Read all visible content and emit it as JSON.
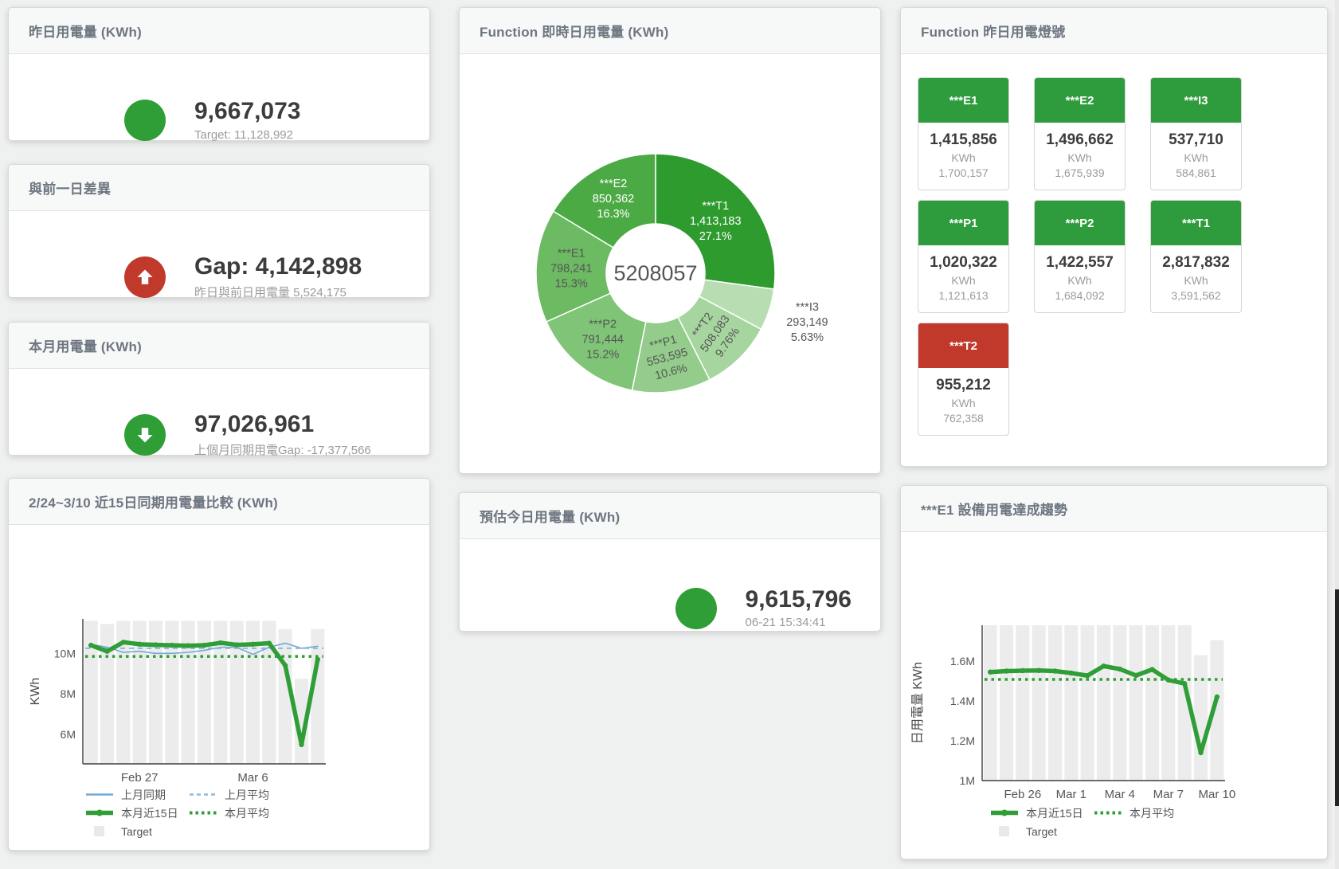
{
  "page": {
    "bg": "#eff0f0"
  },
  "colors": {
    "green": "#2f9e36",
    "red": "#c0392b",
    "tile_green": "#2e9b3c",
    "tile_red": "#c0392b",
    "blue_line": "#72a7d3",
    "blue_dash": "#8bb9e0",
    "bar_gray": "#ececec",
    "title_gray": "#6e7681"
  },
  "cards": {
    "yesterday": {
      "title": "昨日用電量 (KWh)",
      "value": "9,667,073",
      "subtitle": "Target: 11,128,992",
      "indicator": "green-circle"
    },
    "gap": {
      "title": "與前一日差異",
      "value": "Gap: 4,142,898",
      "subtitle": "昨日與前日用電量 5,524,175",
      "indicator": "red-circle-up-arrow"
    },
    "month": {
      "title": "本月用電量 (KWh)",
      "value": "97,026,961",
      "subtitle": "上個月同期用電Gap: -17,377,566",
      "indicator": "green-circle-down-arrow"
    },
    "estimate": {
      "title": "預估今日用電量 (KWh)",
      "value": "9,615,796",
      "subtitle": "06-21 15:34:41",
      "indicator": "green-circle"
    },
    "donut": {
      "title": "Function 即時日用電量 (KWh)"
    },
    "compare": {
      "title": "2/24~3/10 近15日同期用電量比較 (KWh)"
    },
    "trend": {
      "title": "***E1 設備用電達成趨勢"
    },
    "lamp": {
      "title": "Function 昨日用電燈號",
      "unit": "KWh",
      "tiles": [
        {
          "label": "***E1",
          "value": "1,415,856",
          "target": "1,700,157",
          "status": "green"
        },
        {
          "label": "***E2",
          "value": "1,496,662",
          "target": "1,675,939",
          "status": "green"
        },
        {
          "label": "***I3",
          "value": "537,710",
          "target": "584,861",
          "status": "green"
        },
        {
          "label": "***P1",
          "value": "1,020,322",
          "target": "1,121,613",
          "status": "green"
        },
        {
          "label": "***P2",
          "value": "1,422,557",
          "target": "1,684,092",
          "status": "green"
        },
        {
          "label": "***T1",
          "value": "2,817,832",
          "target": "3,591,562",
          "status": "green"
        },
        {
          "label": "***T2",
          "value": "955,212",
          "target": "762,358",
          "status": "red"
        }
      ]
    }
  },
  "chart_data": [
    {
      "id": "donut",
      "type": "pie",
      "title": "Function 即時日用電量 (KWh)",
      "center_total": "5208057",
      "slices": [
        {
          "name": "***T1",
          "value": 1413183,
          "value_label": "1,413,183",
          "pct_label": "27.1%",
          "color": "#2e9b2e",
          "text": "#ffffff"
        },
        {
          "name": "***I3",
          "value": 293149,
          "value_label": "293,149",
          "pct_label": "5.63%",
          "color": "#b9ddb3",
          "text": "#555555",
          "outside": true
        },
        {
          "name": "***T2",
          "value": 508083,
          "value_label": "508,083",
          "pct_label": "9.76%",
          "color": "#a6d59f",
          "text": "#555555"
        },
        {
          "name": "***P1",
          "value": 553595,
          "value_label": "553,595",
          "pct_label": "10.6%",
          "color": "#93cc8b",
          "text": "#555555"
        },
        {
          "name": "***P2",
          "value": 791444,
          "value_label": "791,444",
          "pct_label": "15.2%",
          "color": "#7fc477",
          "text": "#555555"
        },
        {
          "name": "***E1",
          "value": 798241,
          "value_label": "798,241",
          "pct_label": "15.3%",
          "color": "#6cba62",
          "text": "#555555"
        },
        {
          "name": "***E2",
          "value": 850362,
          "value_label": "850,362",
          "pct_label": "16.3%",
          "color": "#4caa45",
          "text": "#ffffff"
        }
      ]
    },
    {
      "id": "compare",
      "type": "line",
      "title": "2/24~3/10 近15日同期用電量比較 (KWh)",
      "ylabel": "KWh",
      "xlabel": "",
      "ylim": [
        4550000,
        11700000
      ],
      "grid": false,
      "legend_position": "bottom-left",
      "yticks": [
        {
          "value": 6000000,
          "label": "6M"
        },
        {
          "value": 8000000,
          "label": "8M"
        },
        {
          "value": 10000000,
          "label": "10M"
        }
      ],
      "x": [
        "2/24",
        "2/25",
        "2/26",
        "2/27",
        "2/28",
        "3/1",
        "3/2",
        "3/3",
        "3/4",
        "3/5",
        "3/6",
        "3/7",
        "3/8",
        "3/9",
        "3/10"
      ],
      "xticks": [
        {
          "index": 3,
          "label": "Feb 27"
        },
        {
          "index": 10,
          "label": "Mar 6"
        }
      ],
      "series": [
        {
          "name": "Target",
          "kind": "bar",
          "color": "#ececec",
          "values": [
            11600000,
            11450000,
            11600000,
            11600000,
            11600000,
            11600000,
            11600000,
            11600000,
            11600000,
            11600000,
            11600000,
            11600000,
            11200000,
            8750000,
            11200000
          ]
        },
        {
          "name": "上月同期",
          "kind": "line",
          "style": "solid",
          "color": "#72a7d3",
          "width": 1.6,
          "values": [
            10450000,
            10300000,
            10050000,
            10100000,
            10000000,
            10000000,
            10050000,
            10150000,
            10300000,
            10300000,
            9950000,
            10300000,
            10500000,
            10250000,
            10350000
          ]
        },
        {
          "name": "上月平均",
          "kind": "line",
          "style": "dashed",
          "color": "#8bb9e0",
          "width": 2,
          "constant": true,
          "values": [
            10250000
          ]
        },
        {
          "name": "本月平均",
          "kind": "line",
          "style": "dotted",
          "color": "#2f9e36",
          "width": 3.5,
          "constant": true,
          "values": [
            9850000
          ]
        },
        {
          "name": "本月近15日",
          "kind": "line",
          "style": "solid",
          "color": "#2f9e36",
          "width": 5.5,
          "markers": true,
          "values": [
            10400000,
            10100000,
            10550000,
            10450000,
            10420000,
            10400000,
            10380000,
            10400000,
            10520000,
            10420000,
            10450000,
            10500000,
            9400000,
            5500000,
            9700000
          ]
        }
      ],
      "legend": [
        {
          "label": "上月同期",
          "marker": "line",
          "color": "#72a7d3"
        },
        {
          "label": "上月平均",
          "marker": "dashed",
          "color": "#8bb9e0"
        },
        {
          "label": "本月近15日",
          "marker": "thick-line",
          "color": "#2f9e36"
        },
        {
          "label": "本月平均",
          "marker": "dotted",
          "color": "#2f9e36"
        },
        {
          "label": "Target",
          "marker": "box",
          "color": "#e9e9e9"
        }
      ]
    },
    {
      "id": "trend",
      "type": "line",
      "title": "***E1 設備用電達成趨勢",
      "ylabel": "日用電量 KWh",
      "xlabel": "",
      "ylim": [
        1000000,
        1780000
      ],
      "grid": false,
      "legend_position": "bottom-left",
      "yticks": [
        {
          "value": 1000000,
          "label": "1M"
        },
        {
          "value": 1200000,
          "label": "1.2M"
        },
        {
          "value": 1400000,
          "label": "1.4M"
        },
        {
          "value": 1600000,
          "label": "1.6M"
        }
      ],
      "x": [
        "2/24",
        "2/25",
        "2/26",
        "2/27",
        "2/28",
        "3/1",
        "3/2",
        "3/3",
        "3/4",
        "3/5",
        "3/6",
        "3/7",
        "3/8",
        "3/9",
        "3/10"
      ],
      "xticks": [
        {
          "index": 2,
          "label": "Feb 26"
        },
        {
          "index": 5,
          "label": "Mar 1"
        },
        {
          "index": 8,
          "label": "Mar 4"
        },
        {
          "index": 11,
          "label": "Mar 7"
        },
        {
          "index": 14,
          "label": "Mar 10"
        }
      ],
      "series": [
        {
          "name": "Target",
          "kind": "bar",
          "color": "#ececec",
          "values": [
            1780000,
            1780000,
            1780000,
            1780000,
            1780000,
            1780000,
            1780000,
            1780000,
            1780000,
            1780000,
            1780000,
            1780000,
            1780000,
            1630000,
            1705000
          ]
        },
        {
          "name": "本月平均",
          "kind": "line",
          "style": "dotted",
          "color": "#2f9e36",
          "width": 3.5,
          "constant": true,
          "values": [
            1508000
          ]
        },
        {
          "name": "本月近15日",
          "kind": "line",
          "style": "solid",
          "color": "#2f9e36",
          "width": 5.5,
          "markers": true,
          "values": [
            1545000,
            1550000,
            1552000,
            1553000,
            1550000,
            1540000,
            1527000,
            1575000,
            1560000,
            1528000,
            1558000,
            1505000,
            1487000,
            1140000,
            1420000
          ]
        }
      ],
      "legend": [
        {
          "label": "本月近15日",
          "marker": "thick-line",
          "color": "#2f9e36"
        },
        {
          "label": "本月平均",
          "marker": "dotted",
          "color": "#2f9e36"
        },
        {
          "label": "Target",
          "marker": "box",
          "color": "#e9e9e9"
        }
      ]
    }
  ]
}
